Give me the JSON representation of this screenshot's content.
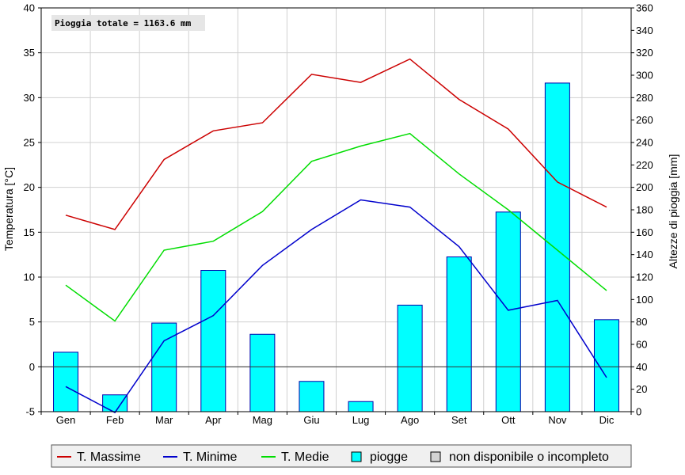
{
  "chart_data": {
    "type": "bar+line",
    "categories": [
      "Gen",
      "Feb",
      "Mar",
      "Apr",
      "Mag",
      "Giu",
      "Lug",
      "Ago",
      "Set",
      "Ott",
      "Nov",
      "Dic"
    ],
    "annotation": "Pioggia totale = 1163.6 mm",
    "ylabel_left": "Temperatura [°C]",
    "ylabel_right": "Altezze di pioggia [mm]",
    "ylim_left": [
      -5,
      40
    ],
    "ylim_right": [
      0,
      360
    ],
    "yticks_left": [
      -5,
      0,
      5,
      10,
      15,
      20,
      25,
      30,
      35,
      40
    ],
    "yticks_right": [
      0,
      20,
      40,
      60,
      80,
      100,
      120,
      140,
      160,
      180,
      200,
      220,
      240,
      260,
      280,
      300,
      320,
      340,
      360
    ],
    "grid": true,
    "legend_position": "bottom",
    "line_series": [
      {
        "name": "T. Massime",
        "color": "#cc0000",
        "axis": "left",
        "values": [
          16.9,
          15.3,
          23.1,
          26.3,
          27.2,
          32.6,
          31.7,
          34.3,
          29.8,
          26.5,
          20.6,
          17.8
        ]
      },
      {
        "name": "T. Minime",
        "color": "#0000cc",
        "axis": "left",
        "values": [
          -2.2,
          -5.1,
          2.9,
          5.7,
          11.3,
          15.3,
          18.6,
          17.8,
          13.4,
          6.3,
          7.4,
          -1.2
        ]
      },
      {
        "name": "T. Medie",
        "color": "#00dd00",
        "axis": "left",
        "values": [
          9.1,
          5.1,
          13.0,
          14.0,
          17.3,
          22.9,
          24.6,
          26.0,
          21.5,
          17.5,
          13.0,
          8.5
        ]
      }
    ],
    "bar_series": {
      "name": "piogge",
      "color": "#00ffff",
      "edge_color": "#0000aa",
      "axis": "right",
      "values": [
        53,
        15,
        79,
        126,
        69,
        27,
        9,
        95,
        138,
        178,
        293,
        82
      ]
    },
    "legend": [
      {
        "label": "T. Massime",
        "kind": "line",
        "color": "#cc0000"
      },
      {
        "label": "T. Minime",
        "kind": "line",
        "color": "#0000cc"
      },
      {
        "label": "T. Medie",
        "kind": "line",
        "color": "#00dd00"
      },
      {
        "label": "piogge",
        "kind": "box",
        "color": "#00ffff"
      },
      {
        "label": "non disponibile o incompleto",
        "kind": "box",
        "color": "#d4d4d4"
      }
    ]
  }
}
